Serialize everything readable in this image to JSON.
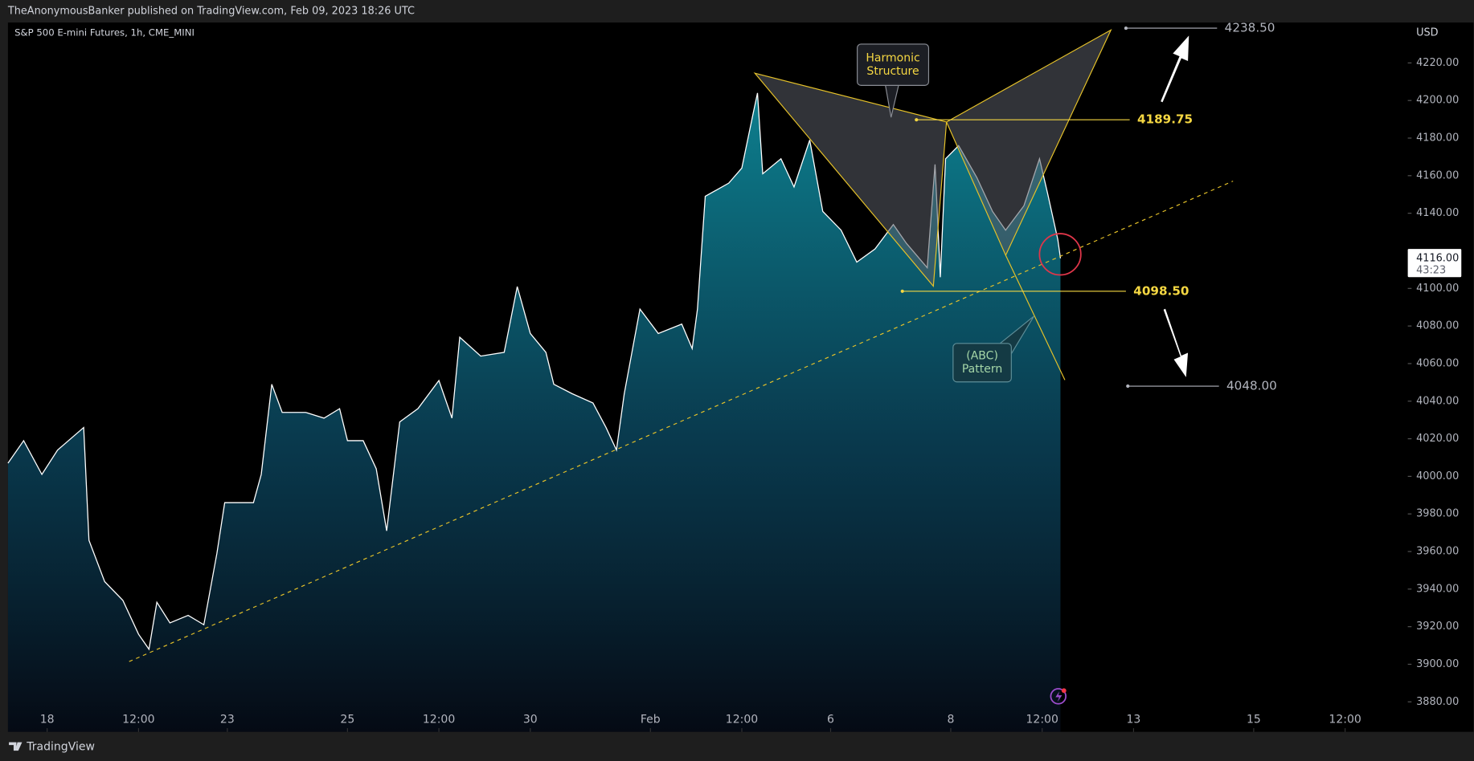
{
  "header": "TheAnonymousBanker published on TradingView.com, Feb 09, 2023 18:26 UTC",
  "footer": "TradingView",
  "chart_data": {
    "type": "area",
    "title": "S&P 500 E-mini Futures, 1h, CME_MINI",
    "currency": "USD",
    "color": "#ffffff",
    "fill_color": "#0e8696",
    "grid": false,
    "x": [
      0,
      6,
      13,
      19,
      29,
      31,
      37,
      44,
      50,
      54,
      57,
      62,
      69,
      75,
      80,
      83,
      94,
      97,
      101,
      105,
      114,
      121,
      127,
      130,
      136,
      141,
      145,
      150,
      157,
      165,
      170,
      173,
      181,
      190,
      195,
      200,
      206,
      209,
      216,
      224,
      229,
      233,
      236,
      242,
      249,
      258,
      262,
      264,
      267,
      276,
      281,
      285,
      287,
      289,
      296,
      301,
      307,
      312,
      319,
      325,
      332,
      339,
      344,
      352,
      355,
      357,
      359,
      364,
      371,
      377,
      382,
      389,
      395,
      398,
      402,
      403
    ],
    "values": [
      4007,
      4019,
      4001,
      4014,
      4026,
      3966,
      3944,
      3934,
      3916,
      3908,
      3933,
      3922,
      3926,
      3921,
      3959,
      3986,
      3986,
      4001,
      4049,
      4034,
      4034,
      4031,
      4036,
      4019,
      4019,
      4004,
      3971,
      4029,
      4036,
      4051,
      4031,
      4074,
      4064,
      4066,
      4101,
      4076,
      4066,
      4049,
      4044,
      4039,
      4026,
      4014,
      4044,
      4089,
      4076,
      4081,
      4068,
      4089,
      4149,
      4156,
      4164,
      4191,
      4204,
      4161,
      4169,
      4154,
      4179,
      4141,
      4131,
      4114,
      4121,
      4134,
      4124,
      4111,
      4166,
      4106,
      4169,
      4176,
      4159,
      4141,
      4131,
      4144,
      4169,
      4151,
      4126,
      4116
    ],
    "xlim": [
      0,
      536
    ],
    "xticks": [
      {
        "value": 15,
        "label": "18"
      },
      {
        "value": 50,
        "label": "12:00"
      },
      {
        "value": 84,
        "label": "23"
      },
      {
        "value": 130,
        "label": "25"
      },
      {
        "value": 165,
        "label": "12:00"
      },
      {
        "value": 200,
        "label": "30"
      },
      {
        "value": 246,
        "label": "Feb"
      },
      {
        "value": 281,
        "label": "12:00"
      },
      {
        "value": 315,
        "label": "6"
      },
      {
        "value": 361,
        "label": "8"
      },
      {
        "value": 396,
        "label": "12:00"
      },
      {
        "value": 431,
        "label": "13"
      },
      {
        "value": 477,
        "label": "15"
      },
      {
        "value": 512,
        "label": "12:00"
      }
    ],
    "ylim": [
      3864,
      4241.5
    ],
    "yticks": [
      {
        "value": 3880,
        "label": "3880.00"
      },
      {
        "value": 3900,
        "label": "3900.00"
      },
      {
        "value": 3920,
        "label": "3920.00"
      },
      {
        "value": 3940,
        "label": "3940.00"
      },
      {
        "value": 3960,
        "label": "3960.00"
      },
      {
        "value": 3980,
        "label": "3980.00"
      },
      {
        "value": 4000,
        "label": "4000.00"
      },
      {
        "value": 4020,
        "label": "4020.00"
      },
      {
        "value": 4040,
        "label": "4040.00"
      },
      {
        "value": 4060,
        "label": "4060.00"
      },
      {
        "value": 4080,
        "label": "4080.00"
      },
      {
        "value": 4100,
        "label": "4100.00"
      },
      {
        "value": 4140,
        "label": "4140.00"
      },
      {
        "value": 4160,
        "label": "4160.00"
      },
      {
        "value": 4180,
        "label": "4180.00"
      },
      {
        "value": 4200,
        "label": "4200.00"
      },
      {
        "value": 4220,
        "label": "4220.00"
      }
    ],
    "last": {
      "value": 4116,
      "label": "4116.00"
    },
    "countdown": "43:23",
    "levels": [
      {
        "value": 4238.5,
        "label": "4238.50",
        "color": "#b2b5be"
      },
      {
        "value": 4189.75,
        "label": "4189.75",
        "color": "#f5d742"
      },
      {
        "value": 4098.5,
        "label": "4098.50",
        "color": "#f5d742"
      },
      {
        "value": 4048,
        "label": "4048.00",
        "color": "#b2b5be"
      }
    ],
    "annotations": [
      {
        "lines": [
          "Harmonic",
          "Structure"
        ],
        "color": "#f5d742"
      },
      {
        "lines": [
          "(ABC)",
          "Pattern"
        ],
        "color": "#a5d6a7"
      }
    ]
  }
}
